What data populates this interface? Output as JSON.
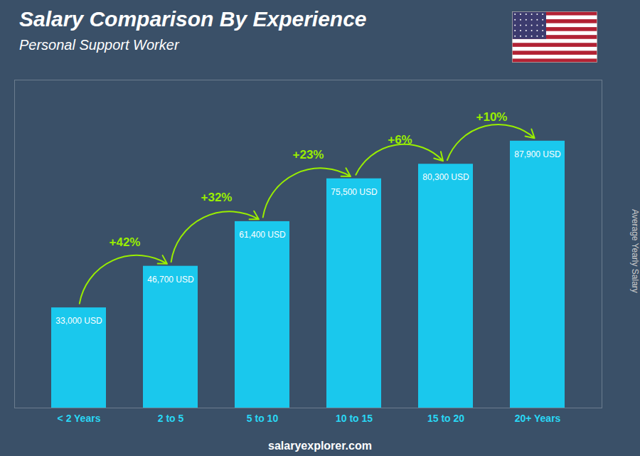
{
  "chart_data": {
    "type": "bar",
    "title": "Salary Comparison By Experience",
    "subtitle": "Personal Support Worker",
    "categories": [
      "< 2 Years",
      "2 to 5",
      "5 to 10",
      "10 to 15",
      "15 to 20",
      "20+ Years"
    ],
    "values": [
      33000,
      46700,
      61400,
      75500,
      80300,
      87900
    ],
    "value_labels": [
      "33,000 USD",
      "46,700 USD",
      "61,400 USD",
      "75,500 USD",
      "80,300 USD",
      "87,900 USD"
    ],
    "data_labels": true,
    "color": "#1ac8ed",
    "ylabel": "Average Yearly Salary",
    "ylim": [
      0,
      108000
    ],
    "tick_labels": "x",
    "grid": false,
    "annotations": [
      "+42%",
      "+32%",
      "+23%",
      "+6%",
      "+10%"
    ],
    "caption": "salaryexplorer.com"
  }
}
